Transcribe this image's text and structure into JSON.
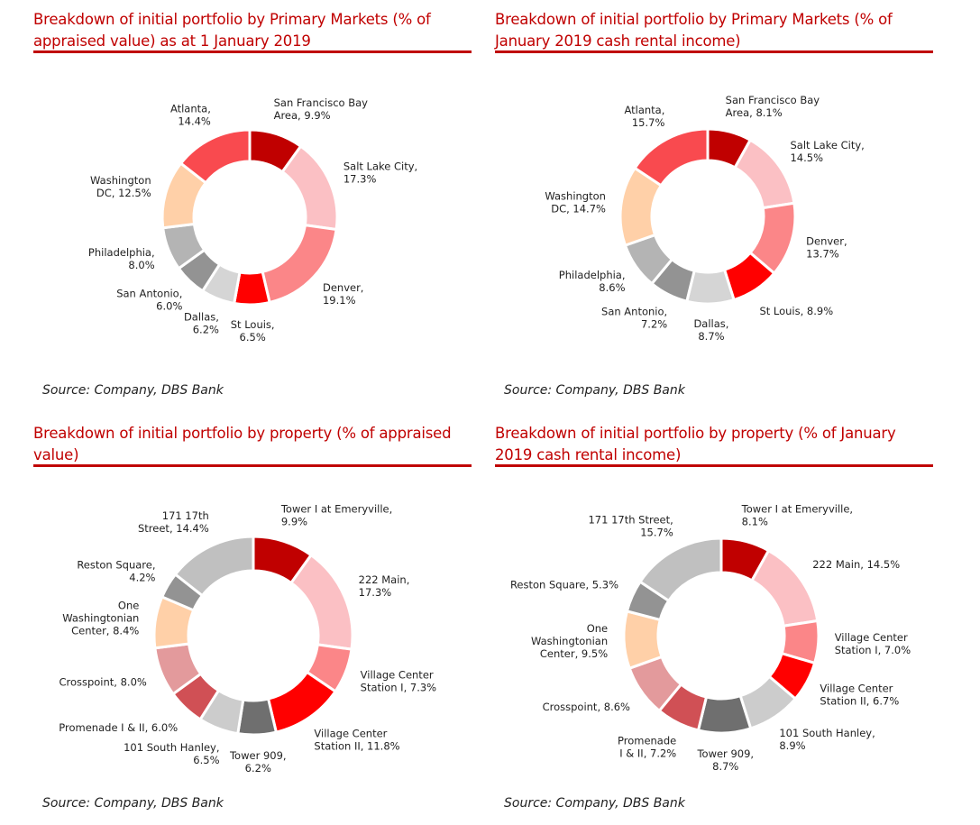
{
  "chart_data": [
    {
      "type": "pie",
      "donut": true,
      "title": "Breakdown of initial portfolio by Primary Markets (% of appraised value) as at 1 January 2019",
      "source": "Source: Company, DBS Bank",
      "slices": [
        {
          "name": "San Francisco Bay Area",
          "value": 9.9,
          "label": [
            "San Francisco Bay",
            "Area, 9.9%"
          ],
          "color": "#c00000"
        },
        {
          "name": "Salt Lake City",
          "value": 17.3,
          "label": [
            "Salt Lake City,",
            "17.3%"
          ],
          "color": "#fbc0c4"
        },
        {
          "name": "Denver",
          "value": 19.1,
          "label": [
            "Denver,",
            "19.1%"
          ],
          "color": "#fb8688"
        },
        {
          "name": "St Louis",
          "value": 6.5,
          "label": [
            "St Louis,",
            "6.5%"
          ],
          "color": "#ff0000"
        },
        {
          "name": "Dallas",
          "value": 6.2,
          "label": [
            "Dallas,",
            "6.2%"
          ],
          "color": "#d5d5d5"
        },
        {
          "name": "San Antonio",
          "value": 6.0,
          "label": [
            "San Antonio,",
            "6.0%"
          ],
          "color": "#939393"
        },
        {
          "name": "Philadelphia",
          "value": 8.0,
          "label": [
            "Philadelphia,",
            "8.0%"
          ],
          "color": "#b4b4b4"
        },
        {
          "name": "Washington DC",
          "value": 12.5,
          "label": [
            "Washington",
            "DC, 12.5%"
          ],
          "color": "#ffd0a8"
        },
        {
          "name": "Atlanta",
          "value": 14.4,
          "label": [
            "Atlanta,",
            "14.4%"
          ],
          "color": "#f94a4f"
        }
      ]
    },
    {
      "type": "pie",
      "donut": true,
      "title": "Breakdown of initial portfolio by Primary Markets (% of January 2019 cash rental income)",
      "source": "Source: Company, DBS Bank",
      "slices": [
        {
          "name": "San Francisco Bay Area",
          "value": 8.1,
          "label": [
            "San Francisco Bay",
            "Area, 8.1%"
          ],
          "color": "#c00000"
        },
        {
          "name": "Salt Lake City",
          "value": 14.5,
          "label": [
            "Salt Lake City,",
            "14.5%"
          ],
          "color": "#fbc0c4"
        },
        {
          "name": "Denver",
          "value": 13.7,
          "label": [
            "Denver,",
            "13.7%"
          ],
          "color": "#fb8688"
        },
        {
          "name": "St Louis",
          "value": 8.9,
          "label": [
            "St Louis, 8.9%"
          ],
          "color": "#ff0000"
        },
        {
          "name": "Dallas",
          "value": 8.7,
          "label": [
            "Dallas,",
            "8.7%"
          ],
          "color": "#d5d5d5"
        },
        {
          "name": "San Antonio",
          "value": 7.2,
          "label": [
            "San Antonio,",
            "7.2%"
          ],
          "color": "#939393"
        },
        {
          "name": "Philadelphia",
          "value": 8.6,
          "label": [
            "Philadelphia,",
            "8.6%"
          ],
          "color": "#b4b4b4"
        },
        {
          "name": "Washington DC",
          "value": 14.7,
          "label": [
            "Washington",
            "DC, 14.7%"
          ],
          "color": "#ffd0a8"
        },
        {
          "name": "Atlanta",
          "value": 15.7,
          "label": [
            "Atlanta,",
            "15.7%"
          ],
          "color": "#f94a4f"
        }
      ]
    },
    {
      "type": "pie",
      "donut": true,
      "title": "Breakdown of initial portfolio by property (% of appraised value)",
      "source": "Source: Company, DBS Bank",
      "slices": [
        {
          "name": "Tower I at Emeryville",
          "value": 9.9,
          "label": [
            "Tower I at Emeryville,",
            "9.9%"
          ],
          "color": "#c00000"
        },
        {
          "name": "222 Main",
          "value": 17.3,
          "label": [
            "222 Main,",
            "17.3%"
          ],
          "color": "#fbc0c4"
        },
        {
          "name": "Village Center Station I",
          "value": 7.3,
          "label": [
            "Village Center",
            "Station I, 7.3%"
          ],
          "color": "#fb8688"
        },
        {
          "name": "Village Center Station II",
          "value": 11.8,
          "label": [
            "Village Center",
            "Station II, 11.8%"
          ],
          "color": "#ff0000"
        },
        {
          "name": "Tower 909",
          "value": 6.2,
          "label": [
            "Tower 909,",
            "6.2%"
          ],
          "color": "#6f6f6f"
        },
        {
          "name": "101 South Hanley",
          "value": 6.5,
          "label": [
            "101 South Hanley,",
            "6.5%"
          ],
          "color": "#cccccc"
        },
        {
          "name": "Promenade I & II",
          "value": 6.0,
          "label": [
            "Promenade  I & II, 6.0%"
          ],
          "color": "#d05055"
        },
        {
          "name": "Crosspoint",
          "value": 8.0,
          "label": [
            "Crosspoint,  8.0%"
          ],
          "color": "#e39a9c"
        },
        {
          "name": "One Washingtonian Center",
          "value": 8.4,
          "label": [
            "One",
            "Washingtonian",
            "Center,  8.4%"
          ],
          "color": "#ffd0a8"
        },
        {
          "name": "Reston Square",
          "value": 4.2,
          "label": [
            "Reston Square,",
            "4.2%"
          ],
          "color": "#939393"
        },
        {
          "name": "171 17th Street",
          "value": 14.4,
          "label": [
            "171 17th",
            "Street, 14.4%"
          ],
          "color": "#c0c0c0"
        }
      ]
    },
    {
      "type": "pie",
      "donut": true,
      "title": "Breakdown of initial portfolio by property (% of January 2019 cash rental income)",
      "source": "Source: Company, DBS Bank",
      "slices": [
        {
          "name": "Tower I at Emeryville",
          "value": 8.1,
          "label": [
            "Tower I at Emeryville,",
            "8.1%"
          ],
          "color": "#c00000"
        },
        {
          "name": "222 Main",
          "value": 14.5,
          "label": [
            "222 Main, 14.5%"
          ],
          "color": "#fbc0c4"
        },
        {
          "name": "Village Center Station I",
          "value": 7.0,
          "label": [
            "Village Center",
            "Station I, 7.0%"
          ],
          "color": "#fb8688"
        },
        {
          "name": "Village Center Station II",
          "value": 6.7,
          "label": [
            "Village Center",
            "Station II, 6.7%"
          ],
          "color": "#ff0000"
        },
        {
          "name": "101 South Hanley",
          "value": 8.9,
          "label": [
            "101 South Hanley,",
            "8.9%"
          ],
          "color": "#cccccc"
        },
        {
          "name": "Tower 909",
          "value": 8.7,
          "label": [
            "Tower 909,",
            "8.7%"
          ],
          "color": "#6f6f6f"
        },
        {
          "name": "Promenade I & II",
          "value": 7.2,
          "label": [
            "Promenade",
            "I & II, 7.2%"
          ],
          "color": "#d05055"
        },
        {
          "name": "Crosspoint",
          "value": 8.6,
          "label": [
            "Crosspoint, 8.6%"
          ],
          "color": "#e39a9c"
        },
        {
          "name": "One Washingtonian Center",
          "value": 9.5,
          "label": [
            "One",
            "Washingtonian",
            "Center,  9.5%"
          ],
          "color": "#ffd0a8"
        },
        {
          "name": "Reston Square",
          "value": 5.3,
          "label": [
            "Reston Square, 5.3%"
          ],
          "color": "#939393"
        },
        {
          "name": "171 17th Street",
          "value": 15.7,
          "label": [
            "171 17th Street,",
            "15.7%"
          ],
          "color": "#c0c0c0"
        }
      ]
    }
  ]
}
